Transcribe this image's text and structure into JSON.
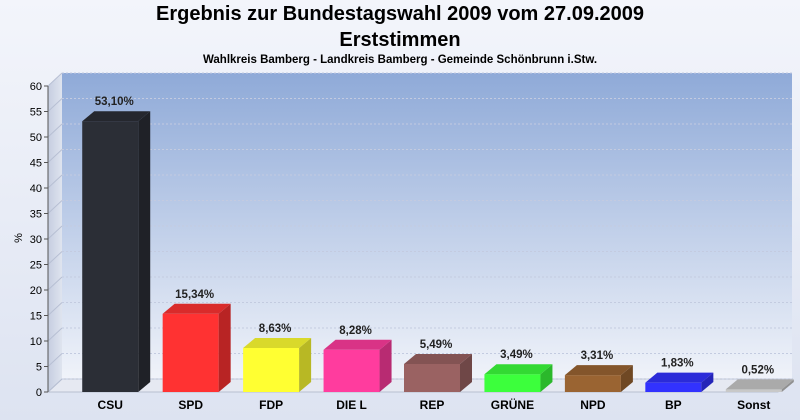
{
  "chart_data": {
    "type": "bar",
    "title": "Ergebnis zur Bundestagswahl 2009 vom 27.09.2009",
    "subtitle": "Erststimmen",
    "caption": "Wahlkreis Bamberg - Landkreis Bamberg - Gemeinde Schönbrunn i.Stw.",
    "ylabel": "%",
    "ylim": [
      0,
      60
    ],
    "yticks": [
      0,
      5,
      10,
      15,
      20,
      25,
      30,
      35,
      40,
      45,
      50,
      55,
      60
    ],
    "grid": true,
    "categories": [
      "CSU",
      "SPD",
      "FDP",
      "DIE L",
      "REP",
      "GRÜNE",
      "NPD",
      "BP",
      "Sonst"
    ],
    "values": [
      53.1,
      15.34,
      8.63,
      8.28,
      5.49,
      3.49,
      3.31,
      1.83,
      0.52
    ],
    "value_labels": [
      "53,10%",
      "15,34%",
      "8,63%",
      "8,28%",
      "5,49%",
      "3,49%",
      "3,31%",
      "1,83%",
      "0,52%"
    ],
    "colors": [
      "#2b2e36",
      "#ff3232",
      "#ffff32",
      "#ff3c9e",
      "#9a6262",
      "#3cff3c",
      "#9a6432",
      "#3232ff",
      "#c8c8c8"
    ]
  }
}
